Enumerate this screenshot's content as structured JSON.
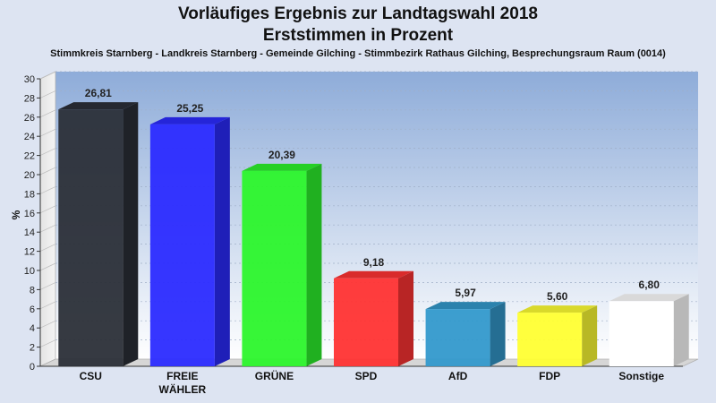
{
  "title_line1": "Vorläufiges Ergebnis zur Landtagswahl 2018",
  "title_line2": "Erststimmen in Prozent",
  "subtitle": "Stimmkreis Starnberg - Landkreis Starnberg - Gemeinde Gilching - Stimmbezirk Rathaus Gilching, Besprechungsraum Raum  (0014)",
  "colors": {
    "background": "#dde4f2",
    "plot_top": "#8eacd9",
    "plot_bottom": "#ffffff",
    "bars": [
      "#2b2f38",
      "#2b2bff",
      "#2cf52c",
      "#ff3333",
      "#3399cc",
      "#ffff33",
      "#ffffff"
    ]
  },
  "chart_data": {
    "type": "bar",
    "title": "Vorläufiges Ergebnis zur Landtagswahl 2018",
    "subtitle": "Erststimmen in Prozent",
    "categories": [
      "CSU",
      "FREIE WÄHLER",
      "GRÜNE",
      "SPD",
      "AfD",
      "FDP",
      "Sonstige"
    ],
    "category_lines": [
      [
        "CSU"
      ],
      [
        "FREIE",
        "WÄHLER"
      ],
      [
        "GRÜNE"
      ],
      [
        "SPD"
      ],
      [
        "AfD"
      ],
      [
        "FDP"
      ],
      [
        "Sonstige"
      ]
    ],
    "values": [
      26.81,
      25.25,
      20.39,
      9.18,
      5.97,
      5.6,
      6.8
    ],
    "value_labels": [
      "26,81",
      "25,25",
      "20,39",
      "9,18",
      "5,97",
      "5,60",
      "6,80"
    ],
    "ylabel": "%",
    "xlabel": "",
    "ylim": [
      0,
      30
    ],
    "yticks": [
      0,
      2,
      4,
      6,
      8,
      10,
      12,
      14,
      16,
      18,
      20,
      22,
      24,
      26,
      28,
      30
    ],
    "grid": true,
    "legend": "none"
  }
}
